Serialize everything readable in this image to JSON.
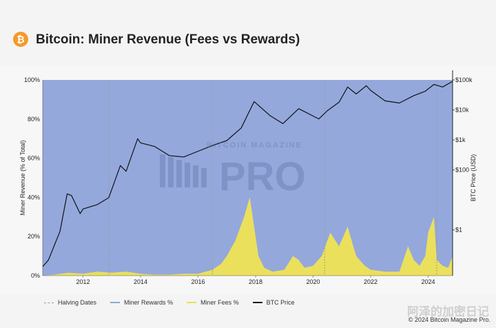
{
  "header": {
    "title": "Bitcoin: Miner Revenue (Fees vs Rewards)",
    "logo_glyph": "₿"
  },
  "colors": {
    "rewards": "#94a8dc",
    "fees": "#ebe05c",
    "price": "#111111",
    "halving": "#9a9a9a",
    "logo": "#f39a2b"
  },
  "chart_data": {
    "type": "area",
    "x_ticks": [
      "2012",
      "2014",
      "2016",
      "2018",
      "2020",
      "2022",
      "2024"
    ],
    "xlim": [
      2010.6,
      2024.85
    ],
    "left_axis": {
      "label": "Miner Revenue (% of Total)",
      "ticks": [
        "0%",
        "20%",
        "40%",
        "60%",
        "80%",
        "100%"
      ],
      "ylim": [
        0,
        100
      ]
    },
    "right_axis": {
      "label": "BTC Price (USD)",
      "ticks": [
        "$1",
        "$100",
        "$1k",
        "$10k",
        "$100k"
      ],
      "scale": "log",
      "ylim": [
        0.03,
        100000
      ]
    },
    "halving_dates": [
      2012.9,
      2016.5,
      2020.4,
      2024.3
    ],
    "series": [
      {
        "name": "Miner Rewards %",
        "type": "area",
        "note": "complement of fees to 100%"
      },
      {
        "name": "Miner Fees %",
        "type": "area",
        "x": [
          2010.6,
          2011.0,
          2011.5,
          2012.0,
          2012.5,
          2013.0,
          2013.5,
          2014.0,
          2014.5,
          2015.0,
          2015.5,
          2016.0,
          2016.5,
          2016.8,
          2017.0,
          2017.3,
          2017.6,
          2017.8,
          2017.95,
          2018.1,
          2018.3,
          2018.6,
          2019.0,
          2019.3,
          2019.5,
          2019.7,
          2020.0,
          2020.3,
          2020.6,
          2020.9,
          2021.2,
          2021.5,
          2021.8,
          2022.0,
          2022.5,
          2023.0,
          2023.3,
          2023.5,
          2023.7,
          2023.9,
          2024.0,
          2024.2,
          2024.3,
          2024.5,
          2024.7,
          2024.85
        ],
        "values": [
          0,
          0.5,
          1.5,
          1,
          2,
          1.5,
          2,
          1,
          0.5,
          0.5,
          1,
          1,
          3,
          6,
          10,
          18,
          30,
          40,
          25,
          10,
          4,
          2,
          3,
          10,
          8,
          4,
          5,
          10,
          22,
          15,
          25,
          10,
          5,
          3,
          2,
          2,
          15,
          8,
          5,
          10,
          22,
          30,
          8,
          5,
          4,
          10
        ]
      },
      {
        "name": "BTC Price",
        "type": "line",
        "axis": "right",
        "x": [
          2010.6,
          2010.8,
          2011.0,
          2011.2,
          2011.45,
          2011.6,
          2011.9,
          2012.0,
          2012.5,
          2012.9,
          2013.3,
          2013.5,
          2013.9,
          2014.0,
          2014.5,
          2015.0,
          2015.5,
          2016.0,
          2016.5,
          2017.0,
          2017.5,
          2017.95,
          2018.5,
          2018.95,
          2019.5,
          2020.2,
          2020.5,
          2020.9,
          2021.2,
          2021.5,
          2021.85,
          2022.0,
          2022.5,
          2023.0,
          2023.5,
          2023.9,
          2024.2,
          2024.5,
          2024.85
        ],
        "values": [
          0.06,
          0.1,
          0.3,
          0.9,
          16,
          14,
          3.5,
          5,
          7,
          12,
          140,
          90,
          1100,
          800,
          600,
          300,
          270,
          420,
          650,
          950,
          2500,
          19000,
          6500,
          3500,
          11000,
          5000,
          9500,
          18000,
          58000,
          34000,
          64000,
          45000,
          20000,
          17000,
          30000,
          42000,
          71000,
          58000,
          90000
        ]
      }
    ]
  },
  "legend": [
    {
      "key": "halving",
      "label": "Halving Dates"
    },
    {
      "key": "rewards",
      "label": "Miner Rewards %"
    },
    {
      "key": "fees",
      "label": "Miner Fees %"
    },
    {
      "key": "price",
      "label": "BTC Price"
    }
  ],
  "watermark": {
    "brand": "BITCOIN MAGAZINE",
    "pro": "PRO",
    "cn": "阿泽的加密日记"
  },
  "copyright": "© 2024 Bitcoin Magazine Pro."
}
